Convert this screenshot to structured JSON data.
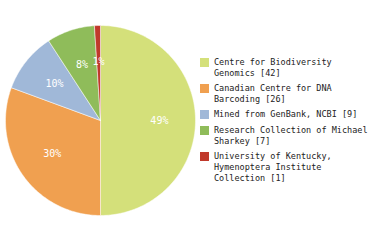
{
  "chart_data": {
    "type": "pie",
    "categories": [
      "Centre for Biodiversity\nGenomics [42]",
      "Canadian Centre for DNA\nBarcoding [26]",
      "Mined from GenBank, NCBI [9]",
      "Research Collection of Michael\nSharkey [7]",
      "University of Kentucky,\nHymenoptera Institute\nCollection [1]"
    ],
    "values": [
      49,
      30,
      10,
      8,
      1
    ],
    "value_labels": [
      "49%",
      "30%",
      "10%",
      "8%",
      "1%"
    ],
    "colors": [
      "#d4e07a",
      "#f0a050",
      "#a0b8d8",
      "#8fbc5a",
      "#c0392b"
    ],
    "data_labels": true,
    "legend": "right"
  }
}
